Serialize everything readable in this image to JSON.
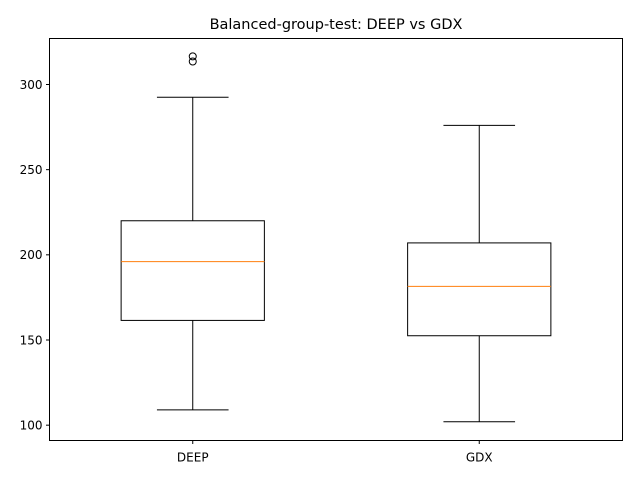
{
  "chart_data": {
    "type": "box",
    "title": "Balanced-group-test: DEEP vs GDX",
    "xlabel": "",
    "ylabel": "",
    "ylim": [
      91,
      327
    ],
    "yticks": [
      100,
      150,
      200,
      250,
      300
    ],
    "grid": false,
    "categories": [
      "DEEP",
      "GDX"
    ],
    "boxes": [
      {
        "label": "DEEP",
        "whisker_low": 109,
        "q1": 161.5,
        "median": 196,
        "q3": 220,
        "whisker_high": 292.5,
        "outliers": [
          313.5,
          316.5
        ]
      },
      {
        "label": "GDX",
        "whisker_low": 102,
        "q1": 152.5,
        "median": 181.5,
        "q3": 207,
        "whisker_high": 276,
        "outliers": []
      }
    ],
    "colors": {
      "box": "#000000",
      "median": "#ff7f0e",
      "outlier": "#000000"
    }
  }
}
